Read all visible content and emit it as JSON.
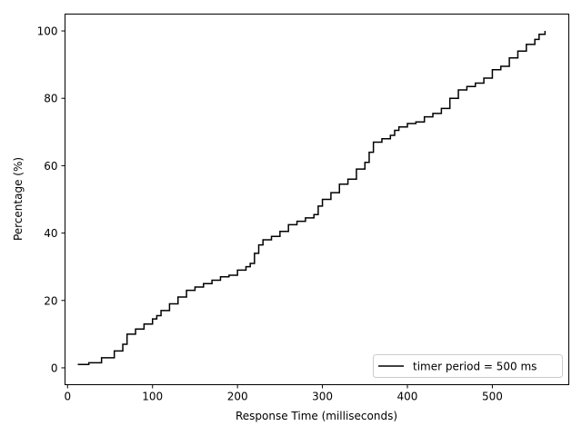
{
  "chart_data": {
    "type": "line",
    "title": "",
    "xlabel": "Response Time (milliseconds)",
    "ylabel": "Percentage (%)",
    "xlim": [
      -3,
      590
    ],
    "ylim": [
      -5,
      105
    ],
    "grid": false,
    "legend_placement": "lower-right",
    "step": true,
    "x_ticks": [
      0,
      100,
      200,
      300,
      400,
      500
    ],
    "y_ticks": [
      0,
      20,
      40,
      60,
      80,
      100
    ],
    "series": [
      {
        "name": "timer period = 500 ms",
        "color": "#000000",
        "x": [
          12,
          25,
          40,
          55,
          65,
          70,
          80,
          90,
          100,
          105,
          110,
          120,
          130,
          140,
          150,
          160,
          170,
          180,
          190,
          200,
          210,
          215,
          220,
          225,
          230,
          240,
          250,
          260,
          270,
          280,
          290,
          295,
          300,
          310,
          320,
          330,
          340,
          350,
          355,
          360,
          370,
          380,
          385,
          390,
          400,
          410,
          420,
          430,
          440,
          450,
          460,
          470,
          480,
          490,
          500,
          510,
          520,
          530,
          540,
          550,
          555,
          562
        ],
        "y": [
          1,
          1.5,
          3,
          5,
          7,
          10,
          11.5,
          13,
          14.5,
          15.5,
          17,
          19,
          21,
          23,
          24,
          25,
          26,
          27,
          27.5,
          29,
          30,
          31,
          34,
          36.5,
          38,
          39,
          40.5,
          42.5,
          43.5,
          44.5,
          45.5,
          48,
          50,
          52,
          54.5,
          56,
          59,
          61,
          64,
          67,
          68,
          69,
          70.5,
          71.5,
          72.5,
          73,
          74.5,
          75.5,
          77,
          80,
          82.5,
          83.5,
          84.5,
          86,
          88.5,
          89.5,
          92,
          94,
          96,
          97.5,
          99,
          100
        ]
      }
    ]
  }
}
